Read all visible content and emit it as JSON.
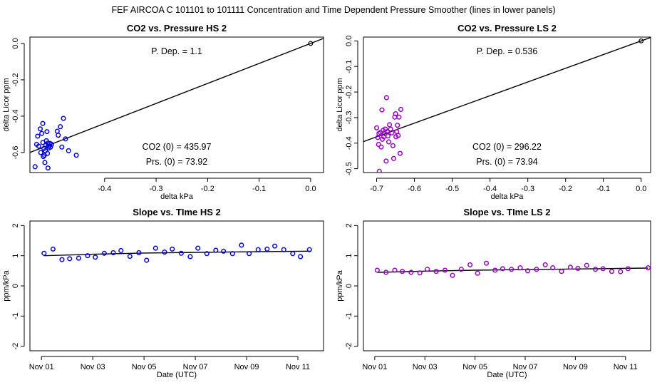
{
  "suptitle": "FEF   AIRCOA C   101101 to 101111   Concentration and Time Dependent Pressure Smoother (lines in lower panels)",
  "chart_data": [
    {
      "id": "hs-pressure",
      "type": "scatter",
      "title": "CO2 vs. Pressure HS 2",
      "xlabel": "delta kPa",
      "ylabel": "delta Licor ppm",
      "xlim": [
        -0.545,
        0.025
      ],
      "ylim": [
        -0.71,
        0.035
      ],
      "xticks": [
        -0.4,
        -0.3,
        -0.2,
        -0.1,
        0.0
      ],
      "xtick_labels": [
        "-0.4",
        "-0.3",
        "-0.2",
        "-0.1",
        "0.0"
      ],
      "yticks": [
        0.0,
        -0.2,
        -0.4,
        -0.6
      ],
      "ytick_labels": [
        "0.0",
        "-0.2",
        "-0.4",
        "-0.6"
      ],
      "point_color": "#0000ee",
      "points": [
        [
          -0.535,
          -0.678
        ],
        [
          -0.532,
          -0.555
        ],
        [
          -0.53,
          -0.51
        ],
        [
          -0.528,
          -0.565
        ],
        [
          -0.525,
          -0.47
        ],
        [
          -0.524,
          -0.6
        ],
        [
          -0.522,
          -0.495
        ],
        [
          -0.52,
          -0.44
        ],
        [
          -0.52,
          -0.545
        ],
        [
          -0.519,
          -0.622
        ],
        [
          -0.518,
          -0.578
        ],
        [
          -0.517,
          -0.615
        ],
        [
          -0.516,
          -0.655
        ],
        [
          -0.515,
          -0.59
        ],
        [
          -0.514,
          -0.56
        ],
        [
          -0.513,
          -0.535
        ],
        [
          -0.512,
          -0.485
        ],
        [
          -0.511,
          -0.605
        ],
        [
          -0.51,
          -0.548
        ],
        [
          -0.51,
          -0.685
        ],
        [
          -0.509,
          -0.565
        ],
        [
          -0.508,
          -0.575
        ],
        [
          -0.506,
          -0.55
        ],
        [
          -0.505,
          -0.57
        ],
        [
          -0.503,
          -0.555
        ],
        [
          -0.492,
          -0.483
        ],
        [
          -0.49,
          -0.505
        ],
        [
          -0.486,
          -0.458
        ],
        [
          -0.483,
          -0.57
        ],
        [
          -0.48,
          -0.412
        ],
        [
          -0.476,
          -0.525
        ],
        [
          -0.47,
          -0.59
        ],
        [
          -0.455,
          -0.615
        ]
      ],
      "ref_point": [
        0.0,
        0.0
      ],
      "fit_line": {
        "intercept": 0.0,
        "slope": 1.1
      },
      "annotations": {
        "pdep": "P. Dep. =  1.1",
        "co2_0": "CO2 (0) =  435.97",
        "prs_0": "Prs. (0) =  73.92"
      }
    },
    {
      "id": "ls-pressure",
      "type": "scatter",
      "title": "CO2 vs. Pressure LS 2",
      "xlabel": "delta kPa",
      "ylabel": "delta Licor ppm",
      "xlim": [
        -0.735,
        0.025
      ],
      "ylim": [
        -0.515,
        0.015
      ],
      "xticks": [
        -0.7,
        -0.6,
        -0.5,
        -0.4,
        -0.3,
        -0.2,
        -0.1,
        0.0
      ],
      "xtick_labels": [
        "-0.7",
        "-0.6",
        "-0.5",
        "-0.4",
        "-0.3",
        "-0.2",
        "-0.1",
        "0.0"
      ],
      "yticks": [
        0.0,
        -0.1,
        -0.2,
        -0.3,
        -0.4,
        -0.5
      ],
      "ytick_labels": [
        "0.0",
        "-0.1",
        "-0.2",
        "-0.3",
        "-0.4",
        "-0.5"
      ],
      "point_color": "#9900cc",
      "points": [
        [
          -0.7,
          -0.34
        ],
        [
          -0.697,
          -0.378
        ],
        [
          -0.695,
          -0.405
        ],
        [
          -0.694,
          -0.362
        ],
        [
          -0.693,
          -0.51
        ],
        [
          -0.69,
          -0.358
        ],
        [
          -0.688,
          -0.415
        ],
        [
          -0.686,
          -0.27
        ],
        [
          -0.685,
          -0.385
        ],
        [
          -0.683,
          -0.35
        ],
        [
          -0.681,
          -0.375
        ],
        [
          -0.679,
          -0.362
        ],
        [
          -0.677,
          -0.345
        ],
        [
          -0.675,
          -0.47
        ],
        [
          -0.674,
          -0.222
        ],
        [
          -0.672,
          -0.355
        ],
        [
          -0.67,
          -0.372
        ],
        [
          -0.668,
          -0.395
        ],
        [
          -0.666,
          -0.328
        ],
        [
          -0.663,
          -0.345
        ],
        [
          -0.66,
          -0.36
        ],
        [
          -0.657,
          -0.41
        ],
        [
          -0.655,
          -0.46
        ],
        [
          -0.652,
          -0.298
        ],
        [
          -0.65,
          -0.285
        ],
        [
          -0.649,
          -0.375
        ],
        [
          -0.647,
          -0.355
        ],
        [
          -0.645,
          -0.33
        ],
        [
          -0.643,
          -0.37
        ],
        [
          -0.641,
          -0.298
        ],
        [
          -0.638,
          -0.44
        ],
        [
          -0.636,
          -0.268
        ]
      ],
      "ref_point": [
        0.0,
        0.0
      ],
      "fit_line": {
        "intercept": 0.0,
        "slope": 0.536
      },
      "annotations": {
        "pdep": "P. Dep. =  0.536",
        "co2_0": "CO2 (0) =  296.22",
        "prs_0": "Prs. (0) =  73.94"
      }
    },
    {
      "id": "hs-slope",
      "type": "scatter",
      "title": "Slope vs. TIme HS 2",
      "xlabel": "Date (UTC)",
      "ylabel": "ppm/kPa",
      "xlim": [
        0.55,
        12.0
      ],
      "ylim": [
        -2.15,
        2.15
      ],
      "xticks": [
        1,
        3,
        5,
        7,
        9,
        11
      ],
      "xtick_labels": [
        "Nov 01",
        "Nov 03",
        "Nov 05",
        "Nov 07",
        "Nov 09",
        "Nov 11"
      ],
      "yticks": [
        -2,
        -1,
        0,
        1,
        2
      ],
      "ytick_labels": [
        "-2",
        "-1",
        "0",
        "1",
        "2"
      ],
      "point_color": "#0000ee",
      "points": [
        [
          1.1,
          1.08
        ],
        [
          1.45,
          1.22
        ],
        [
          1.8,
          0.87
        ],
        [
          2.1,
          0.9
        ],
        [
          2.45,
          0.92
        ],
        [
          2.8,
          1.0
        ],
        [
          3.1,
          0.95
        ],
        [
          3.45,
          1.08
        ],
        [
          3.8,
          1.1
        ],
        [
          4.1,
          1.17
        ],
        [
          4.45,
          0.98
        ],
        [
          4.8,
          1.1
        ],
        [
          5.1,
          0.85
        ],
        [
          5.45,
          1.25
        ],
        [
          5.8,
          1.12
        ],
        [
          6.1,
          1.22
        ],
        [
          6.45,
          1.08
        ],
        [
          6.8,
          0.97
        ],
        [
          7.1,
          1.25
        ],
        [
          7.45,
          1.07
        ],
        [
          7.8,
          1.18
        ],
        [
          8.1,
          1.15
        ],
        [
          8.45,
          1.07
        ],
        [
          8.8,
          1.35
        ],
        [
          9.1,
          1.07
        ],
        [
          9.45,
          1.2
        ],
        [
          9.8,
          1.22
        ],
        [
          10.1,
          1.32
        ],
        [
          10.45,
          1.2
        ],
        [
          10.8,
          1.07
        ],
        [
          11.1,
          0.97
        ],
        [
          11.45,
          1.2
        ]
      ],
      "smoother": [
        [
          1.1,
          1.0
        ],
        [
          3.0,
          1.05
        ],
        [
          5.0,
          1.09
        ],
        [
          7.0,
          1.11
        ],
        [
          9.0,
          1.13
        ],
        [
          11.5,
          1.15
        ]
      ]
    },
    {
      "id": "ls-slope",
      "type": "scatter",
      "title": "Slope vs. TIme LS 2",
      "xlabel": "Date (UTC)",
      "ylabel": "ppm/kPa",
      "xlim": [
        0.55,
        12.0
      ],
      "ylim": [
        -2.15,
        2.15
      ],
      "xticks": [
        1,
        3,
        5,
        7,
        9,
        11
      ],
      "xtick_labels": [
        "Nov 01",
        "Nov 03",
        "Nov 05",
        "Nov 07",
        "Nov 09",
        "Nov 11"
      ],
      "yticks": [
        -2,
        -1,
        0,
        1,
        2
      ],
      "ytick_labels": [
        "-2",
        "-1",
        "0",
        "1",
        "2"
      ],
      "point_color": "#9900cc",
      "points": [
        [
          1.1,
          0.52
        ],
        [
          1.45,
          0.45
        ],
        [
          1.8,
          0.52
        ],
        [
          2.1,
          0.48
        ],
        [
          2.45,
          0.45
        ],
        [
          2.8,
          0.43
        ],
        [
          3.1,
          0.55
        ],
        [
          3.45,
          0.48
        ],
        [
          3.8,
          0.52
        ],
        [
          4.1,
          0.35
        ],
        [
          4.45,
          0.55
        ],
        [
          4.8,
          0.7
        ],
        [
          5.1,
          0.42
        ],
        [
          5.45,
          0.75
        ],
        [
          5.8,
          0.52
        ],
        [
          6.1,
          0.57
        ],
        [
          6.45,
          0.55
        ],
        [
          6.8,
          0.6
        ],
        [
          7.1,
          0.5
        ],
        [
          7.45,
          0.55
        ],
        [
          7.8,
          0.7
        ],
        [
          8.1,
          0.6
        ],
        [
          8.45,
          0.48
        ],
        [
          8.8,
          0.62
        ],
        [
          9.1,
          0.58
        ],
        [
          9.45,
          0.68
        ],
        [
          9.8,
          0.55
        ],
        [
          10.1,
          0.57
        ],
        [
          10.45,
          0.48
        ],
        [
          10.8,
          0.47
        ],
        [
          11.1,
          0.57
        ],
        [
          11.9,
          0.6
        ]
      ],
      "smoother": [
        [
          1.1,
          0.45
        ],
        [
          3.0,
          0.49
        ],
        [
          5.0,
          0.52
        ],
        [
          7.0,
          0.54
        ],
        [
          9.0,
          0.56
        ],
        [
          11.9,
          0.59
        ]
      ]
    }
  ]
}
